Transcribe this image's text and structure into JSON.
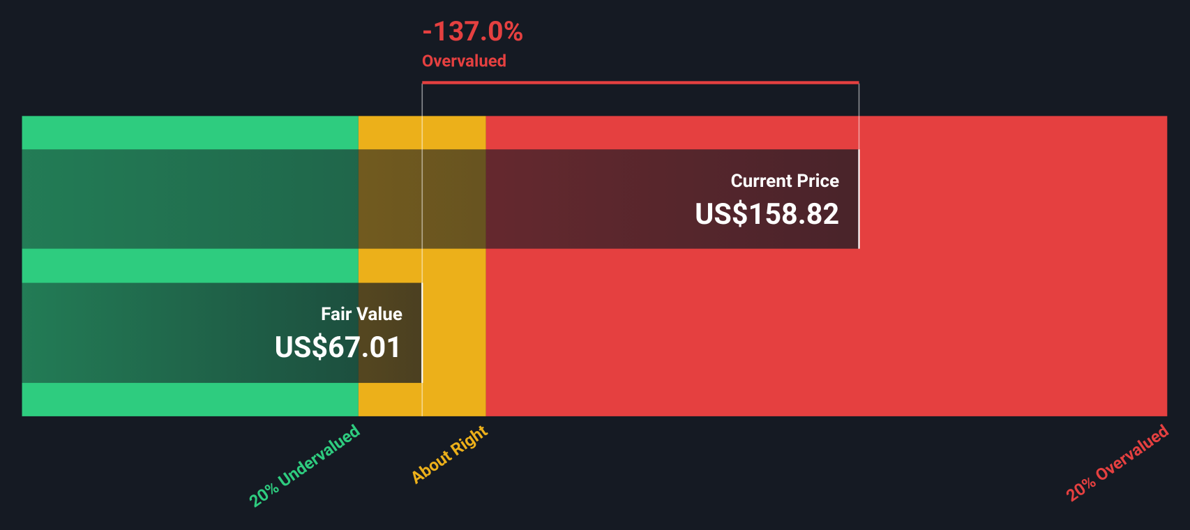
{
  "chart_data": {
    "type": "valuation",
    "difference": {
      "value": -137.0,
      "label": "-137.0%",
      "verdict": "Overvalued"
    },
    "categories": [
      "Current Price",
      "Fair Value"
    ],
    "values": [
      158.82,
      67.01
    ],
    "value_labels": [
      "US$158.82",
      "US$67.01"
    ],
    "zones": [
      {
        "name": "20% Undervalued",
        "color": "#2ecc7f",
        "end": 53.61
      },
      {
        "name": "About Right",
        "color": "#ecb01a",
        "end": 80.41
      },
      {
        "name": "20% Overvalued",
        "color": "#e54040",
        "end": 223.6
      }
    ],
    "xlim": [
      -17.1,
      223.6
    ]
  }
}
